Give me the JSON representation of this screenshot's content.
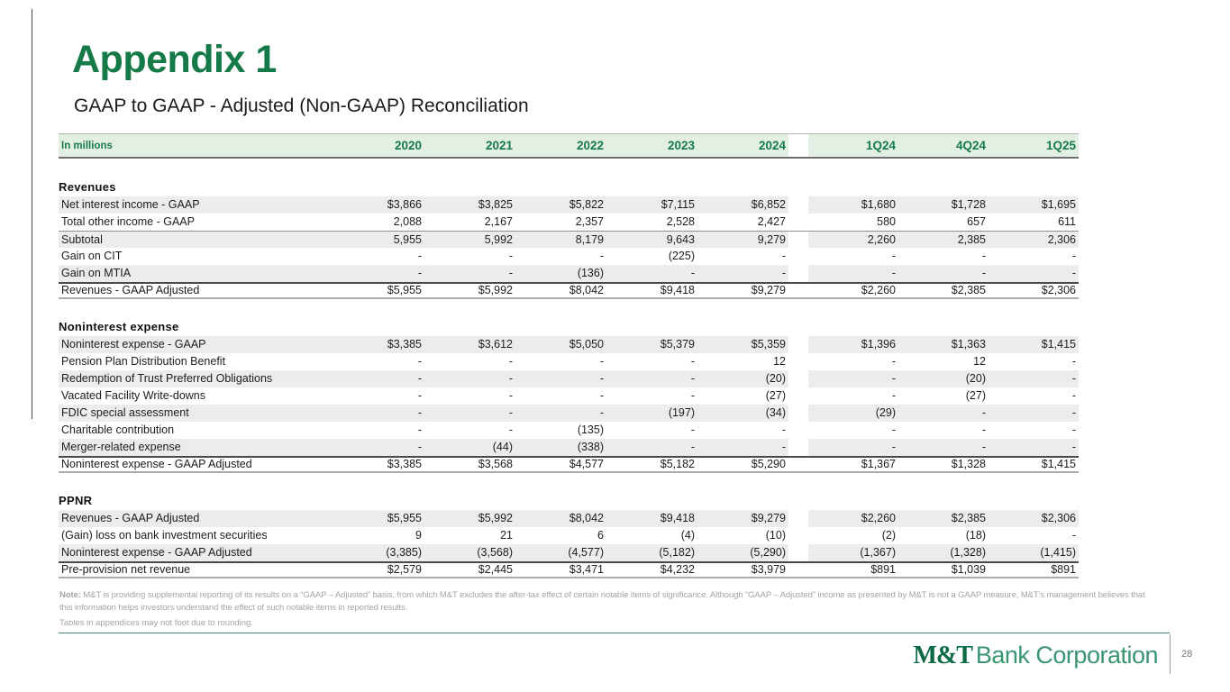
{
  "page": {
    "title": "Appendix 1",
    "subtitle": "GAAP to GAAP - Adjusted (Non-GAAP) Reconciliation"
  },
  "colors": {
    "brand_green": "#157a47",
    "header_bg": "#e4efe4",
    "shaded_row": "#ececec",
    "note_gray": "#a4a4a4",
    "footer_rule_green": "#418a66"
  },
  "table": {
    "unit_label": "In millions",
    "year_columns": [
      "2020",
      "2021",
      "2022",
      "2023",
      "2024"
    ],
    "quarter_columns": [
      "1Q24",
      "4Q24",
      "1Q25"
    ],
    "sections": [
      {
        "title": "Revenues",
        "rows": [
          {
            "label": "Net interest income - GAAP",
            "years": [
              "$3,866",
              "$3,825",
              "$5,822",
              "$7,115",
              "$6,852"
            ],
            "quarters": [
              "$1,680",
              "$1,728",
              "$1,695"
            ],
            "shaded": true
          },
          {
            "label": "Total other income - GAAP",
            "years": [
              "2,088",
              "2,167",
              "2,357",
              "2,528",
              "2,427"
            ],
            "quarters": [
              "580",
              "657",
              "611"
            ]
          },
          {
            "label": "Subtotal",
            "years": [
              "5,955",
              "5,992",
              "8,179",
              "9,643",
              "9,279"
            ],
            "quarters": [
              "2,260",
              "2,385",
              "2,306"
            ],
            "shaded": true,
            "subtotal": true
          },
          {
            "label": "Gain on CIT",
            "years": [
              "-",
              "-",
              "-",
              "(225)",
              "-"
            ],
            "quarters": [
              "-",
              "-",
              "-"
            ]
          },
          {
            "label": "Gain on MTIA",
            "years": [
              "-",
              "-",
              "(136)",
              "-",
              "-"
            ],
            "quarters": [
              "-",
              "-",
              "-"
            ],
            "shaded": true
          },
          {
            "label": "Revenues - GAAP Adjusted",
            "years": [
              "$5,955",
              "$5,992",
              "$8,042",
              "$9,418",
              "$9,279"
            ],
            "quarters": [
              "$2,260",
              "$2,385",
              "$2,306"
            ],
            "total": true
          }
        ]
      },
      {
        "title": "Noninterest expense",
        "rows": [
          {
            "label": "Noninterest expense - GAAP",
            "years": [
              "$3,385",
              "$3,612",
              "$5,050",
              "$5,379",
              "$5,359"
            ],
            "quarters": [
              "$1,396",
              "$1,363",
              "$1,415"
            ],
            "shaded": true
          },
          {
            "label": "Pension Plan Distribution Benefit",
            "years": [
              "-",
              "-",
              "-",
              "-",
              "12"
            ],
            "quarters": [
              "-",
              "12",
              "-"
            ]
          },
          {
            "label": "Redemption of Trust Preferred Obligations",
            "years": [
              "-",
              "-",
              "-",
              "-",
              "(20)"
            ],
            "quarters": [
              "-",
              "(20)",
              "-"
            ],
            "shaded": true
          },
          {
            "label": "Vacated Facility Write-downs",
            "years": [
              "-",
              "-",
              "-",
              "-",
              "(27)"
            ],
            "quarters": [
              "-",
              "(27)",
              "-"
            ]
          },
          {
            "label": "FDIC special assessment",
            "years": [
              "-",
              "-",
              "-",
              "(197)",
              "(34)"
            ],
            "quarters": [
              "(29)",
              "-",
              "-"
            ],
            "shaded": true
          },
          {
            "label": "Charitable contribution",
            "years": [
              "-",
              "-",
              "(135)",
              "-",
              "-"
            ],
            "quarters": [
              "-",
              "-",
              "-"
            ]
          },
          {
            "label": "Merger-related expense",
            "years": [
              "-",
              "(44)",
              "(338)",
              "-",
              "-"
            ],
            "quarters": [
              "-",
              "-",
              "-"
            ],
            "shaded": true
          },
          {
            "label": "Noninterest expense - GAAP Adjusted",
            "years": [
              "$3,385",
              "$3,568",
              "$4,577",
              "$5,182",
              "$5,290"
            ],
            "quarters": [
              "$1,367",
              "$1,328",
              "$1,415"
            ],
            "total": true
          }
        ]
      },
      {
        "title": "PPNR",
        "rows": [
          {
            "label": "Revenues - GAAP Adjusted",
            "years": [
              "$5,955",
              "$5,992",
              "$8,042",
              "$9,418",
              "$9,279"
            ],
            "quarters": [
              "$2,260",
              "$2,385",
              "$2,306"
            ],
            "shaded": true
          },
          {
            "label": "(Gain) loss on bank investment securities",
            "years": [
              "9",
              "21",
              "6",
              "(4)",
              "(10)"
            ],
            "quarters": [
              "(2)",
              "(18)",
              "-"
            ]
          },
          {
            "label": "Noninterest expense - GAAP Adjusted",
            "years": [
              "(3,385)",
              "(3,568)",
              "(4,577)",
              "(5,182)",
              "(5,290)"
            ],
            "quarters": [
              "(1,367)",
              "(1,328)",
              "(1,415)"
            ],
            "shaded": true
          },
          {
            "label": "Pre-provision net revenue",
            "years": [
              "$2,579",
              "$2,445",
              "$3,471",
              "$4,232",
              "$3,979"
            ],
            "quarters": [
              "$891",
              "$1,039",
              "$891"
            ],
            "total": true
          }
        ]
      }
    ]
  },
  "notes": {
    "note_label": "Note:",
    "note_text": "M&T is providing supplemental reporting of its results on a “GAAP – Adjusted” basis, from which M&T excludes the after-tax effect of certain notable items of significance. Although “GAAP – Adjusted” income as presented by M&T is not a GAAP measure, M&T’s management believes that this information helps investors understand the effect of such notable items in reported results.",
    "rounding_text": "Tables in appendices may not foot due to rounding."
  },
  "footer": {
    "logo_bold": "M&T",
    "logo_rest": "Bank Corporation",
    "page_number": "28"
  }
}
